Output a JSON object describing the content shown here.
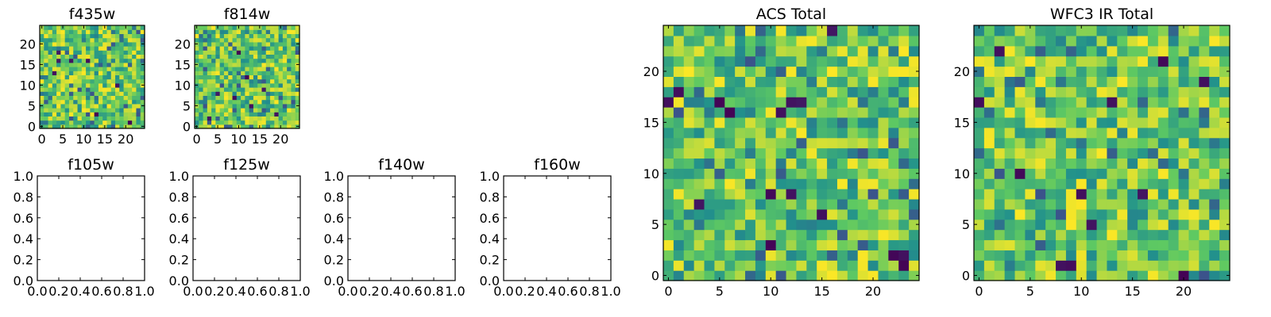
{
  "figure": {
    "colormap": "viridis",
    "colormap_stops": [
      "#440154",
      "#3b528b",
      "#21918c",
      "#5ec962",
      "#fde725"
    ]
  },
  "chart_data": [
    {
      "type": "heatmap",
      "title": "f435w",
      "grid_size": 25,
      "xlim": [
        -0.5,
        24.5
      ],
      "ylim": [
        -0.5,
        24.5
      ],
      "xticks": [
        0,
        5,
        10,
        15,
        20
      ],
      "yticks": [
        0,
        5,
        10,
        15,
        20
      ],
      "seed": 11,
      "low_cells": [
        [
          4,
          16
        ],
        [
          7,
          16
        ],
        [
          11,
          16
        ],
        [
          4,
          18
        ],
        [
          13,
          3
        ],
        [
          21,
          1
        ],
        [
          3,
          13
        ],
        [
          18,
          10
        ]
      ]
    },
    {
      "type": "heatmap",
      "title": "f814w",
      "grid_size": 25,
      "xlim": [
        -0.5,
        24.5
      ],
      "ylim": [
        -0.5,
        24.5
      ],
      "xticks": [
        0,
        5,
        10,
        15,
        20
      ],
      "yticks": [
        0,
        5,
        10,
        15,
        20
      ],
      "seed": 29,
      "low_cells": [
        [
          5,
          8
        ],
        [
          9,
          7
        ],
        [
          13,
          5
        ],
        [
          16,
          9
        ],
        [
          10,
          18
        ],
        [
          19,
          3
        ],
        [
          12,
          12
        ],
        [
          3,
          2
        ]
      ]
    },
    {
      "type": "empty",
      "title": "f105w",
      "xlim": [
        0,
        1
      ],
      "ylim": [
        0,
        1
      ],
      "xticks": [
        "0.0",
        "0.2",
        "0.4",
        "0.6",
        "0.8",
        "1.0"
      ],
      "yticks": [
        "0.0",
        "0.2",
        "0.4",
        "0.6",
        "0.8",
        "1.0"
      ]
    },
    {
      "type": "empty",
      "title": "f125w",
      "xlim": [
        0,
        1
      ],
      "ylim": [
        0,
        1
      ],
      "xticks": [
        "0.0",
        "0.2",
        "0.4",
        "0.6",
        "0.8",
        "1.0"
      ],
      "yticks": [
        "0.0",
        "0.2",
        "0.4",
        "0.6",
        "0.8",
        "1.0"
      ]
    },
    {
      "type": "empty",
      "title": "f140w",
      "xlim": [
        0,
        1
      ],
      "ylim": [
        0,
        1
      ],
      "xticks": [
        "0.0",
        "0.2",
        "0.4",
        "0.6",
        "0.8",
        "1.0"
      ],
      "yticks": [
        "0.0",
        "0.2",
        "0.4",
        "0.6",
        "0.8",
        "1.0"
      ]
    },
    {
      "type": "empty",
      "title": "f160w",
      "xlim": [
        0,
        1
      ],
      "ylim": [
        0,
        1
      ],
      "xticks": [
        "0.0",
        "0.2",
        "0.4",
        "0.6",
        "0.8",
        "1.0"
      ],
      "yticks": [
        "0.0",
        "0.2",
        "0.4",
        "0.6",
        "0.8",
        "1.0"
      ]
    },
    {
      "type": "heatmap",
      "title": "ACS Total",
      "grid_size": 25,
      "xlim": [
        -0.5,
        24.5
      ],
      "ylim": [
        -0.5,
        24.5
      ],
      "xticks": [
        0,
        5,
        10,
        15,
        20
      ],
      "yticks": [
        0,
        5,
        10,
        15,
        20
      ],
      "seed": 47,
      "low_cells": [
        [
          0,
          17
        ],
        [
          1,
          18
        ],
        [
          5,
          17
        ],
        [
          6,
          16
        ],
        [
          11,
          16
        ],
        [
          12,
          17
        ],
        [
          13,
          17
        ],
        [
          16,
          24
        ],
        [
          10,
          8
        ],
        [
          12,
          8
        ],
        [
          23,
          1
        ],
        [
          23,
          2
        ],
        [
          22,
          2
        ],
        [
          3,
          7
        ],
        [
          15,
          6
        ],
        [
          10,
          3
        ]
      ]
    },
    {
      "type": "heatmap",
      "title": "WFC3 IR Total",
      "grid_size": 25,
      "xlim": [
        -0.5,
        24.5
      ],
      "ylim": [
        -0.5,
        24.5
      ],
      "xticks": [
        0,
        5,
        10,
        15,
        20
      ],
      "yticks": [
        0,
        5,
        10,
        15,
        20
      ],
      "seed": 83,
      "low_cells": [
        [
          0,
          17
        ],
        [
          2,
          22
        ],
        [
          18,
          21
        ],
        [
          22,
          19
        ],
        [
          13,
          17
        ],
        [
          8,
          1
        ],
        [
          9,
          1
        ],
        [
          11,
          5
        ],
        [
          20,
          0
        ],
        [
          4,
          10
        ],
        [
          16,
          8
        ],
        [
          10,
          8
        ]
      ]
    }
  ]
}
